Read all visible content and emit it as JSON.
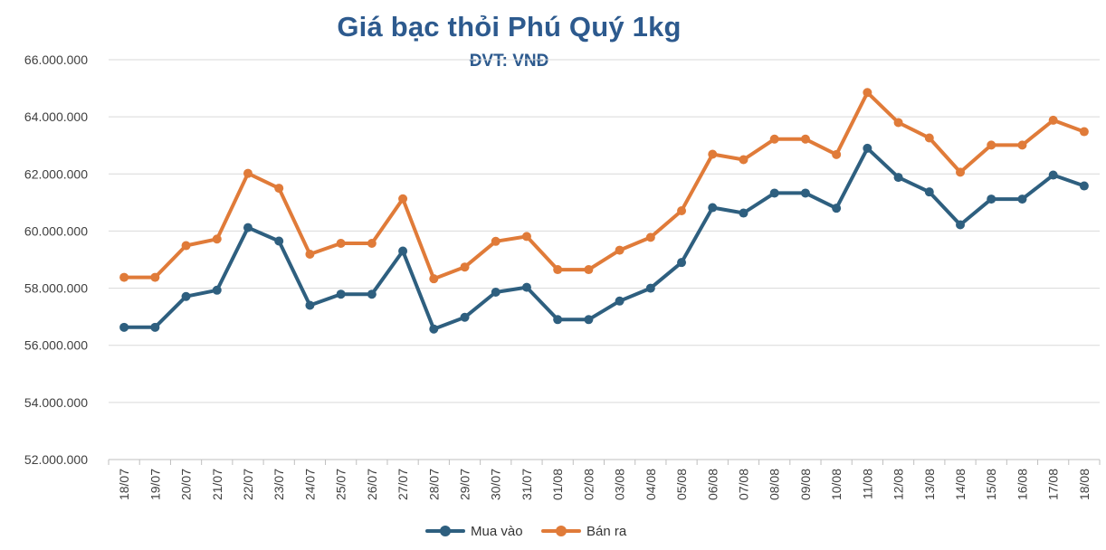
{
  "colors": {
    "title": "#2d5a8e",
    "axis_text": "#404040",
    "gridline": "#d9d9d9"
  },
  "chart_data": {
    "type": "line",
    "title": "Giá bạc thỏi Phú Quý 1kg",
    "subtitle": "ĐVT: VNĐ",
    "ylim": [
      52000000,
      66000000
    ],
    "yticks": [
      "52.000.000",
      "54.000.000",
      "56.000.000",
      "58.000.000",
      "60.000.000",
      "62.000.000",
      "64.000.000",
      "66.000.000"
    ],
    "grid": true,
    "legend_position": "bottom",
    "categories": [
      "18/07",
      "19/07",
      "20/07",
      "21/07",
      "22/07",
      "23/07",
      "24/07",
      "25/07",
      "26/07",
      "27/07",
      "28/07",
      "29/07",
      "30/07",
      "31/07",
      "01/08",
      "02/08",
      "03/08",
      "04/08",
      "05/08",
      "06/08",
      "07/08",
      "08/08",
      "09/08",
      "10/08",
      "11/08",
      "12/08",
      "13/08",
      "14/08",
      "15/08",
      "16/08",
      "17/08",
      "18/08"
    ],
    "series": [
      {
        "name": "Mua vào",
        "color": "#2e5f7f",
        "values": [
          56630000,
          56630000,
          57710000,
          57930000,
          60120000,
          59650000,
          57400000,
          57790000,
          57790000,
          59300000,
          56570000,
          56980000,
          57860000,
          58030000,
          56900000,
          56900000,
          57550000,
          58000000,
          58900000,
          60820000,
          60630000,
          61330000,
          61330000,
          60800000,
          62900000,
          61880000,
          61370000,
          60220000,
          61120000,
          61120000,
          61960000,
          61580000
        ]
      },
      {
        "name": "Bán ra",
        "color": "#e07b39",
        "values": [
          58380000,
          58380000,
          59490000,
          59720000,
          62020000,
          61500000,
          59190000,
          59570000,
          59570000,
          61130000,
          58330000,
          58740000,
          59640000,
          59810000,
          58650000,
          58650000,
          59330000,
          59780000,
          60710000,
          62690000,
          62500000,
          63220000,
          63220000,
          62680000,
          64850000,
          63800000,
          63260000,
          62060000,
          63010000,
          63010000,
          63880000,
          63480000
        ]
      }
    ]
  }
}
